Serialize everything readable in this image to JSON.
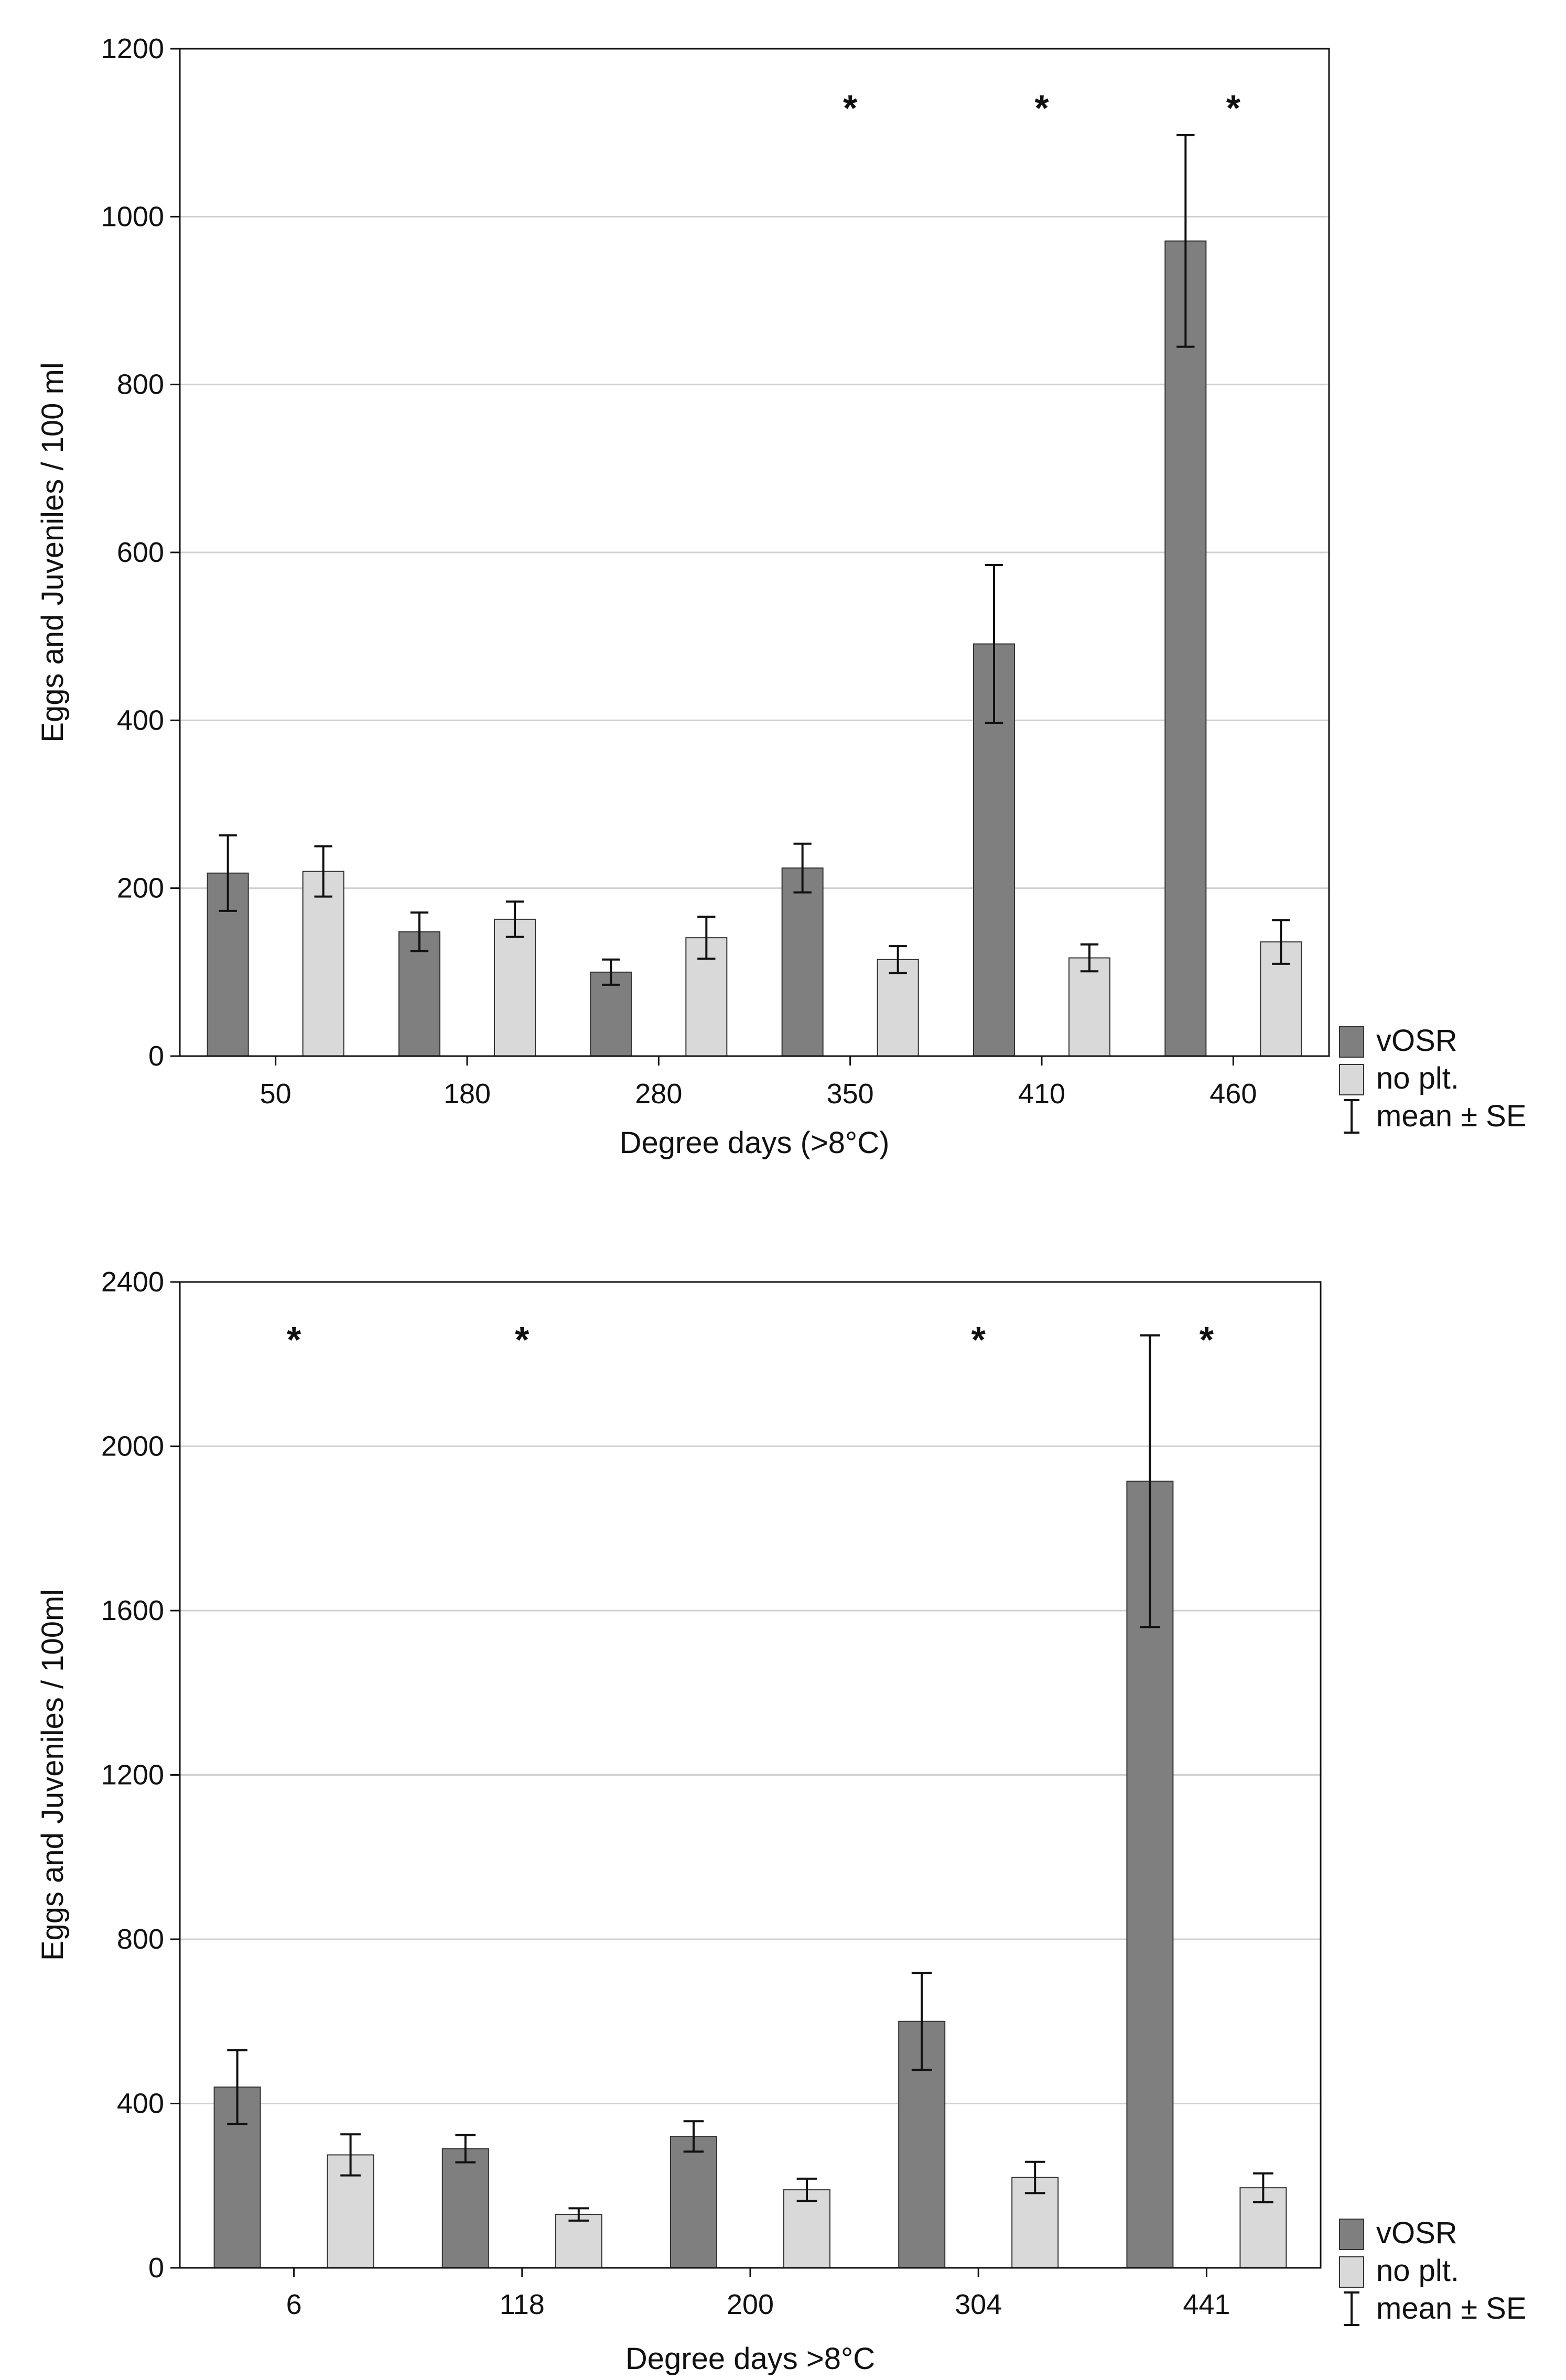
{
  "chart_data": [
    {
      "type": "bar",
      "title": "",
      "xlabel": "Degree days (>8°C)",
      "ylabel": "Eggs and Juveniles / 100 ml",
      "ylim": [
        0,
        1200
      ],
      "yticks": [
        0,
        200,
        400,
        600,
        800,
        1000,
        1200
      ],
      "categories": [
        "50",
        "180",
        "280",
        "350",
        "410",
        "460"
      ],
      "series": [
        {
          "name": "vOSR",
          "color": "#7f7f7f",
          "values": [
            218,
            148,
            100,
            224,
            491,
            971
          ],
          "se": [
            45,
            23,
            15,
            29,
            94,
            126
          ]
        },
        {
          "name": "no plt.",
          "color": "#d9d9d9",
          "values": [
            220,
            163,
            141,
            115,
            117,
            136
          ],
          "se": [
            30,
            21,
            25,
            16,
            16,
            26
          ]
        }
      ],
      "significance": [
        false,
        false,
        false,
        true,
        true,
        true
      ],
      "significance_marker": "*",
      "legend": {
        "items": [
          "vOSR",
          "no plt."
        ],
        "error_label": "mean ± SE",
        "position": "bottom-right outside"
      },
      "grid": true
    },
    {
      "type": "bar",
      "title": "",
      "xlabel": "Degree days >8°C",
      "ylabel": "Eggs and Juveniles / 100ml",
      "ylim": [
        0,
        2400
      ],
      "yticks": [
        0,
        400,
        800,
        1200,
        1600,
        2000,
        2400
      ],
      "categories": [
        "6",
        "118",
        "200",
        "304",
        "441"
      ],
      "series": [
        {
          "name": "vOSR",
          "color": "#7f7f7f",
          "values": [
            440,
            290,
            320,
            600,
            1915
          ],
          "se": [
            90,
            33,
            37,
            118,
            355
          ]
        },
        {
          "name": "no plt.",
          "color": "#d9d9d9",
          "values": [
            275,
            130,
            190,
            220,
            195
          ],
          "se": [
            50,
            15,
            27,
            38,
            35
          ]
        }
      ],
      "significance": [
        true,
        true,
        false,
        true,
        true
      ],
      "significance_marker": "*",
      "legend": {
        "items": [
          "vOSR",
          "no plt."
        ],
        "error_label": "mean ± SE",
        "position": "bottom-right outside"
      },
      "grid": true
    }
  ]
}
